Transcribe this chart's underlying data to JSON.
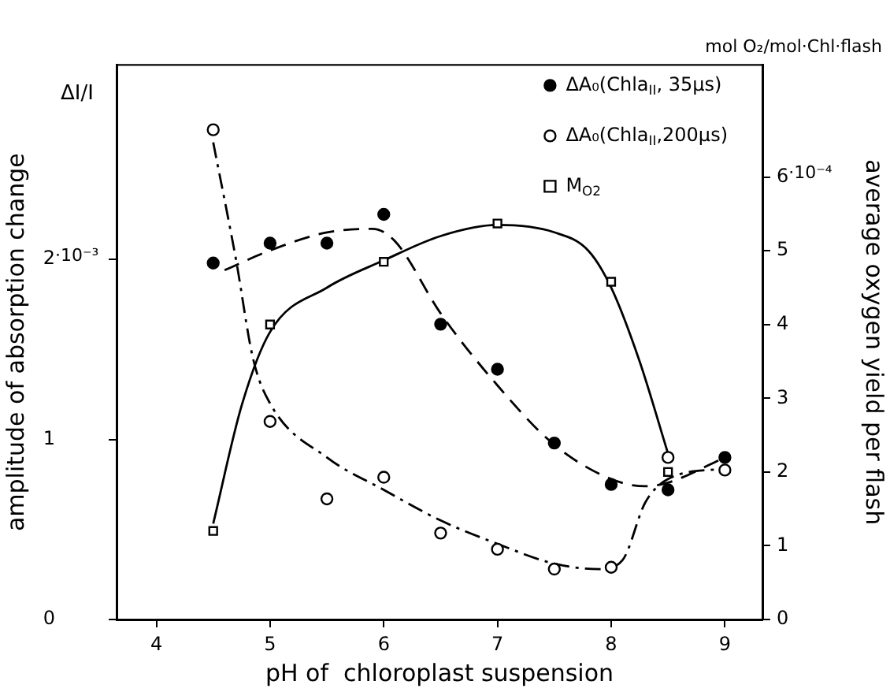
{
  "chart_data": {
    "type": "scatter",
    "xlabel": "pH of  chloroplast suspension",
    "ylabel": "amplitude of absorption change",
    "y2label": "average oxygen yield per flash",
    "annotations": [
      "ΔI/I",
      "mol O₂/mol·Chl·flash",
      "·10⁻³",
      "·10⁻⁴"
    ],
    "xlim": [
      3.65,
      9.33
    ],
    "xticks": [
      4,
      5,
      6,
      7,
      8,
      9
    ],
    "ylim": [
      0,
      3.08
    ],
    "yticks": [
      0,
      1,
      2
    ],
    "y2lim": [
      0,
      7.52
    ],
    "y2ticks": [
      0,
      1,
      2,
      3,
      4,
      5,
      6
    ],
    "grid": false,
    "legend": "top right",
    "series": [
      {
        "name": "ΔA₀(Chla$_{II}$, 35μs)",
        "color": "#000000",
        "marker": "circle",
        "x": [
          4.5,
          5,
          5.5,
          6,
          6.5,
          7,
          7.5,
          8,
          8.5,
          9
        ],
        "values": [
          1.98,
          2.09,
          2.09,
          2.25,
          1.64,
          1.39,
          0.98,
          0.75,
          0.72,
          0.9
        ]
      },
      {
        "name": "ΔA₀(Chla$_{II}$,200μs)",
        "color": "#000000",
        "marker": "circle-open",
        "x": [
          4.5,
          5,
          5.5,
          6,
          6.5,
          7,
          7.5,
          8,
          8.5,
          9
        ],
        "values": [
          2.72,
          1.1,
          0.67,
          0.79,
          0.48,
          0.39,
          0.28,
          0.29,
          0.9,
          0.83
        ]
      },
      {
        "name": "M$_{O2}$",
        "color": "#000000",
        "marker": "square-open",
        "axis": "y2",
        "x": [
          4.5,
          5,
          6,
          7,
          8,
          8.5
        ],
        "values": [
          1.2,
          4.0,
          4.85,
          5.37,
          4.58,
          2.0
        ]
      },
      {
        "type": "line",
        "color": "#000000",
        "marker": "none",
        "line_style": "dashed",
        "x": [
          4.6,
          5,
          5.5,
          5.9,
          6.1,
          6.5,
          7,
          7.5,
          8,
          8.3,
          8.5,
          9
        ],
        "values": [
          1.94,
          2.05,
          2.15,
          2.17,
          2.1,
          1.7,
          1.3,
          0.97,
          0.78,
          0.74,
          0.76,
          0.9
        ]
      },
      {
        "type": "line",
        "color": "#000000",
        "marker": "none",
        "line_style": "dashdot",
        "x": [
          4.5,
          4.7,
          4.85,
          5,
          5.5,
          6,
          6.5,
          7,
          7.5,
          7.9,
          8.1,
          8.3,
          8.5,
          9
        ],
        "values": [
          2.65,
          2.0,
          1.45,
          1.2,
          0.9,
          0.72,
          0.55,
          0.42,
          0.31,
          0.28,
          0.33,
          0.65,
          0.78,
          0.84
        ]
      },
      {
        "type": "line",
        "color": "#000000",
        "marker": "none",
        "line_style": "solid",
        "axis": "y2",
        "x": [
          4.5,
          4.75,
          5,
          5.5,
          6,
          6.5,
          7,
          7.5,
          7.8,
          8,
          8.25,
          8.5
        ],
        "values": [
          1.3,
          2.9,
          3.9,
          4.5,
          4.87,
          5.2,
          5.35,
          5.25,
          5.0,
          4.5,
          3.5,
          2.25
        ]
      }
    ]
  }
}
